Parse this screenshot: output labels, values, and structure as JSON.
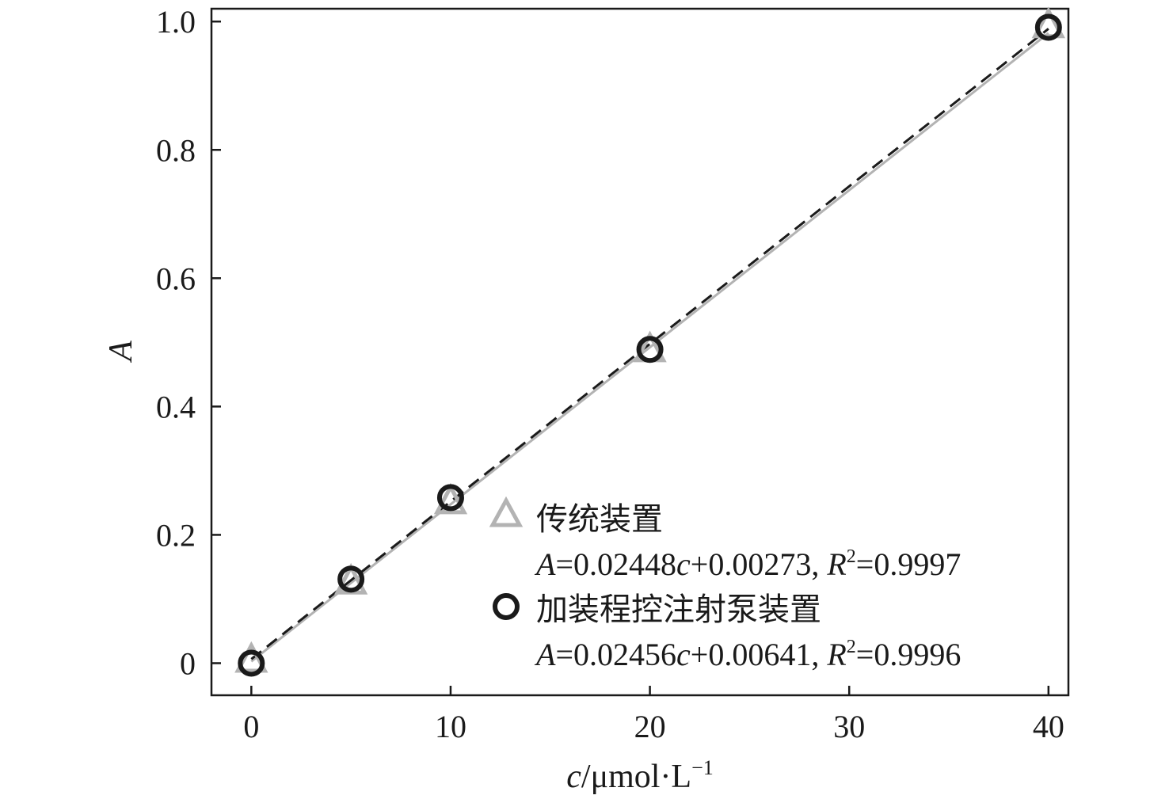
{
  "chart_data": {
    "type": "scatter",
    "title": "",
    "xlabel": "c/μmol·L⁻¹",
    "xlabel_parts": {
      "var": "c",
      "unit": "/μmol·L",
      "sup": "−1"
    },
    "ylabel": "A",
    "xlim": [
      -2,
      41
    ],
    "ylim": [
      -0.05,
      1.02
    ],
    "x_ticks": [
      0,
      10,
      20,
      30,
      40
    ],
    "x_tick_labels": [
      "0",
      "10",
      "20",
      "30",
      "40"
    ],
    "y_ticks": [
      0,
      0.2,
      0.4,
      0.6,
      0.8,
      1.0
    ],
    "y_tick_labels": [
      "0",
      "0.2",
      "0.4",
      "0.6",
      "0.8",
      "1.0"
    ],
    "grid": false,
    "legend_position": "bottom-right",
    "series": [
      {
        "name": "传统装置",
        "marker": "triangle",
        "color": "#b3b3b3",
        "line_style": "solid",
        "equation": "A=0.02448c+0.00273, R²=0.9997",
        "equation_parts": {
          "a": "A",
          "mid": "=0.02448",
          "c": "c",
          "rest": "+0.00273, ",
          "r": "R",
          "r2": "2",
          "end": "=0.9997"
        },
        "fit": {
          "slope": 0.02448,
          "intercept": 0.00273
        },
        "x": [
          0,
          5,
          10,
          20,
          40
        ],
        "y": [
          0.003,
          0.125,
          0.25,
          0.487,
          0.992
        ]
      },
      {
        "name": "加装程控注射泵装置",
        "marker": "circle",
        "color": "#1a1a1a",
        "line_style": "dashed",
        "equation": "A=0.02456c+0.00641, R²=0.9996",
        "equation_parts": {
          "a": "A",
          "mid": "=0.02456",
          "c": "c",
          "rest": "+0.00641, ",
          "r": "R",
          "r2": "2",
          "end": "=0.9996"
        },
        "fit": {
          "slope": 0.02456,
          "intercept": 0.00641
        },
        "x": [
          0,
          5,
          10,
          20,
          40
        ],
        "y": [
          0.0,
          0.131,
          0.258,
          0.489,
          0.991
        ]
      }
    ]
  }
}
